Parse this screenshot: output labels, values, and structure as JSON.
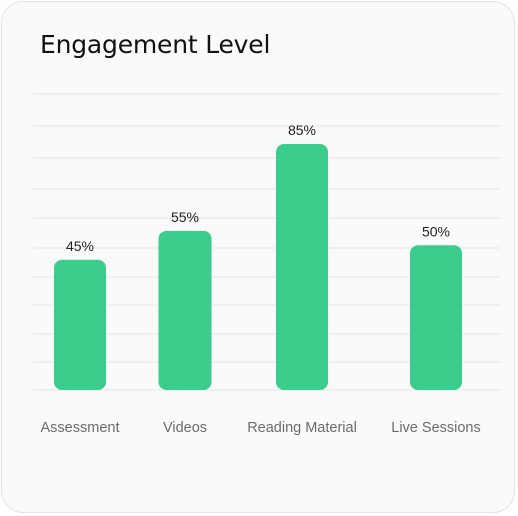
{
  "chart_data": {
    "type": "bar",
    "title": "Engagement Level",
    "categories": [
      "Assessment",
      "Videos",
      "Reading Material",
      "Live Sessions"
    ],
    "values": [
      45,
      55,
      85,
      50
    ],
    "value_labels": [
      "45%",
      "55%",
      "85%",
      "50%"
    ],
    "xlabel": "",
    "ylabel": "",
    "ylim": [
      0,
      100
    ],
    "grid": true,
    "legend": "none",
    "colors": {
      "bar": "#3acd8c",
      "grid": "#e6e6e6"
    }
  }
}
